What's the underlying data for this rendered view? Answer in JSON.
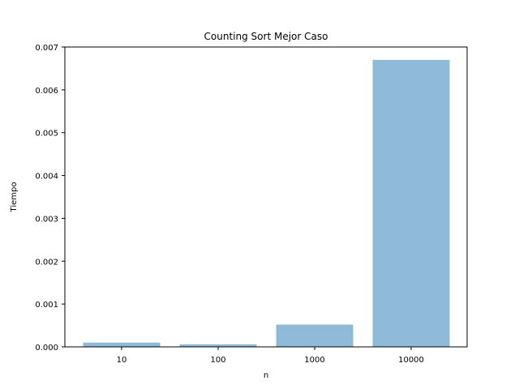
{
  "chart_data": {
    "type": "bar",
    "title": "Counting Sort Mejor Caso",
    "xlabel": "n",
    "ylabel": "Tiempo",
    "categories": [
      "10",
      "100",
      "1000",
      "10000"
    ],
    "values": [
      0.0001,
      6e-05,
      0.00052,
      0.0067
    ],
    "ylim": [
      0,
      0.007
    ],
    "yticks": [
      "0.000",
      "0.001",
      "0.002",
      "0.003",
      "0.004",
      "0.005",
      "0.006",
      "0.007"
    ],
    "grid": false,
    "bar_color": "#8fbbd9"
  }
}
